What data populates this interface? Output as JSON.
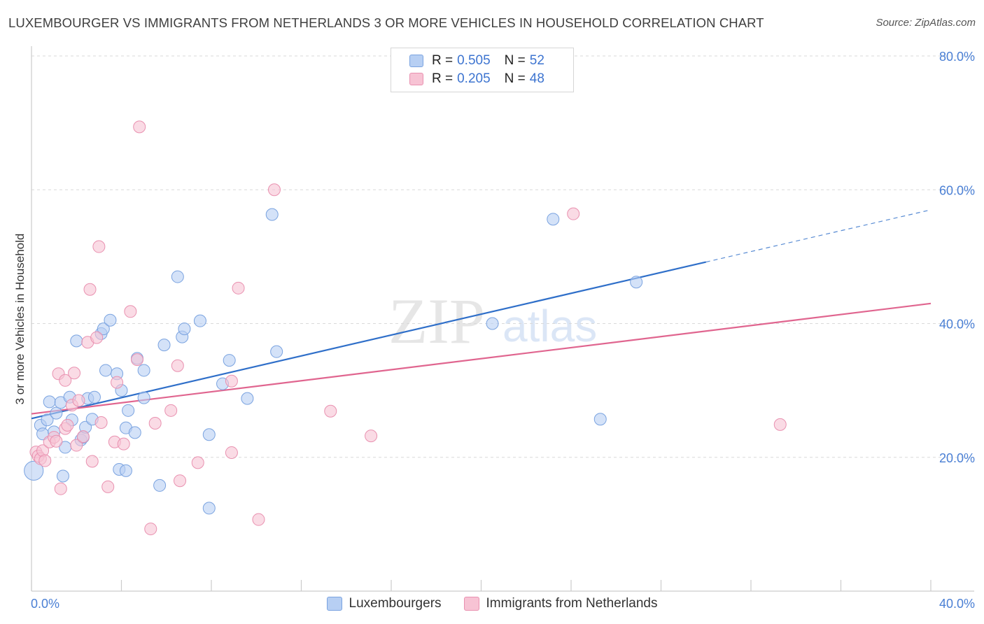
{
  "header": {
    "title": "LUXEMBOURGER VS IMMIGRANTS FROM NETHERLANDS 3 OR MORE VEHICLES IN HOUSEHOLD CORRELATION CHART",
    "source": "Source: ZipAtlas.com"
  },
  "watermark": {
    "zip": "ZIP",
    "atlas": "atlas"
  },
  "legend": {
    "rows": [
      {
        "r_label": "R =",
        "r_value": "0.505",
        "n_label": "N =",
        "n_value": "52"
      },
      {
        "r_label": "R =",
        "r_value": "0.205",
        "n_label": "N =",
        "n_value": "48"
      }
    ]
  },
  "bottom_legend": {
    "series1": "Luxembourgers",
    "series2": "Immigrants from Netherlands"
  },
  "colors": {
    "blue_fill": "#b7cff3",
    "blue_stroke": "#7aa3e0",
    "blue_line": "#2f6fc9",
    "pink_fill": "#f7c3d4",
    "pink_stroke": "#e991b0",
    "pink_line": "#e0658f",
    "grid": "#d9d9d9",
    "axis_text": "#4a7fd4"
  },
  "chart_data": {
    "type": "scatter",
    "title": "LUXEMBOURGER VS IMMIGRANTS FROM NETHERLANDS 3 OR MORE VEHICLES IN HOUSEHOLD CORRELATION CHART",
    "xlabel": "",
    "ylabel": "3 or more Vehicles in Household",
    "xlim": [
      0,
      40
    ],
    "ylim": [
      0,
      80
    ],
    "x_tick_labels": [
      "0.0%",
      "40.0%"
    ],
    "y_ticks": [
      20,
      40,
      60,
      80
    ],
    "y_tick_labels": [
      "20.0%",
      "40.0%",
      "60.0%",
      "80.0%"
    ],
    "grid": true,
    "series": [
      {
        "name": "Luxembourgers",
        "color": "#7aa3e0",
        "R": 0.505,
        "N": 52,
        "trend": {
          "x_start": 0,
          "y_start": 25.8,
          "x_solid_end": 30,
          "y_solid_end": 49.2,
          "x_end": 40,
          "y_end": 57
        },
        "points": [
          [
            0.1,
            18.0,
            1.6
          ],
          [
            0.4,
            24.8,
            1
          ],
          [
            0.5,
            23.5,
            1
          ],
          [
            0.7,
            25.6,
            1
          ],
          [
            0.8,
            28.3,
            1
          ],
          [
            1.0,
            23.8,
            1
          ],
          [
            1.1,
            26.6,
            1
          ],
          [
            1.3,
            28.2,
            1
          ],
          [
            1.4,
            17.2,
            1
          ],
          [
            1.5,
            21.5,
            1
          ],
          [
            1.7,
            29.0,
            1
          ],
          [
            1.8,
            25.6,
            1
          ],
          [
            2.0,
            37.4,
            1
          ],
          [
            2.2,
            22.6,
            1
          ],
          [
            2.3,
            23.0,
            1
          ],
          [
            2.4,
            24.5,
            1
          ],
          [
            2.5,
            28.8,
            1
          ],
          [
            2.7,
            25.7,
            1
          ],
          [
            2.8,
            29.0,
            1
          ],
          [
            3.1,
            38.5,
            1
          ],
          [
            3.2,
            39.2,
            1
          ],
          [
            3.3,
            33.0,
            1
          ],
          [
            3.5,
            40.5,
            1
          ],
          [
            3.8,
            32.5,
            1
          ],
          [
            3.9,
            18.2,
            1
          ],
          [
            4.0,
            30.0,
            1
          ],
          [
            4.2,
            18.0,
            1
          ],
          [
            4.2,
            24.4,
            1
          ],
          [
            4.3,
            27.0,
            1
          ],
          [
            4.6,
            23.7,
            1
          ],
          [
            4.7,
            34.8,
            1
          ],
          [
            5.0,
            33.0,
            1
          ],
          [
            5.0,
            28.9,
            1
          ],
          [
            5.7,
            15.8,
            1
          ],
          [
            5.9,
            36.8,
            1
          ],
          [
            6.5,
            47.0,
            1
          ],
          [
            6.7,
            38.0,
            1
          ],
          [
            6.8,
            39.2,
            1
          ],
          [
            7.5,
            40.4,
            1
          ],
          [
            7.9,
            23.4,
            1
          ],
          [
            7.9,
            12.4,
            1
          ],
          [
            8.5,
            31.0,
            1
          ],
          [
            8.8,
            34.5,
            1
          ],
          [
            9.6,
            28.8,
            1
          ],
          [
            10.7,
            56.3,
            1
          ],
          [
            10.9,
            35.8,
            1
          ],
          [
            20.5,
            40.0,
            1
          ],
          [
            23.2,
            55.6,
            1
          ],
          [
            25.3,
            25.7,
            1
          ],
          [
            26.9,
            46.2,
            1
          ]
        ]
      },
      {
        "name": "Immigrants from Netherlands",
        "color": "#e991b0",
        "R": 0.205,
        "N": 48,
        "trend": {
          "x_start": 0,
          "y_start": 26.5,
          "x_end": 40,
          "y_end": 43.0
        },
        "points": [
          [
            0.2,
            20.8,
            1
          ],
          [
            0.3,
            20.2,
            1
          ],
          [
            0.4,
            19.8,
            1
          ],
          [
            0.5,
            21.0,
            1
          ],
          [
            0.6,
            19.5,
            1
          ],
          [
            0.8,
            22.3,
            1
          ],
          [
            1.0,
            23.0,
            1
          ],
          [
            1.1,
            22.4,
            1
          ],
          [
            1.2,
            32.5,
            1
          ],
          [
            1.3,
            15.3,
            1
          ],
          [
            1.5,
            31.5,
            1
          ],
          [
            1.5,
            24.3,
            1
          ],
          [
            1.6,
            24.8,
            1
          ],
          [
            1.8,
            27.8,
            1
          ],
          [
            1.9,
            32.6,
            1
          ],
          [
            2.0,
            21.8,
            1
          ],
          [
            2.1,
            28.5,
            1
          ],
          [
            2.3,
            23.1,
            1
          ],
          [
            2.5,
            37.2,
            1
          ],
          [
            2.6,
            45.1,
            1
          ],
          [
            2.7,
            19.4,
            1
          ],
          [
            2.9,
            37.9,
            1
          ],
          [
            3.0,
            51.5,
            1
          ],
          [
            3.1,
            25.2,
            1
          ],
          [
            3.4,
            15.6,
            1
          ],
          [
            3.7,
            22.3,
            1
          ],
          [
            3.8,
            31.2,
            1
          ],
          [
            4.1,
            22.0,
            1
          ],
          [
            4.4,
            41.8,
            1
          ],
          [
            4.7,
            34.6,
            1
          ],
          [
            4.8,
            69.4,
            1
          ],
          [
            5.3,
            9.3,
            1
          ],
          [
            5.5,
            25.1,
            1
          ],
          [
            6.2,
            27.0,
            1
          ],
          [
            6.5,
            33.7,
            1
          ],
          [
            6.6,
            16.5,
            1
          ],
          [
            7.4,
            19.2,
            1
          ],
          [
            8.9,
            31.4,
            1
          ],
          [
            8.9,
            20.7,
            1
          ],
          [
            9.2,
            45.3,
            1
          ],
          [
            10.1,
            10.7,
            1
          ],
          [
            10.8,
            60.0,
            1
          ],
          [
            13.3,
            26.9,
            1
          ],
          [
            15.1,
            23.2,
            1
          ],
          [
            24.1,
            56.4,
            1
          ],
          [
            33.3,
            24.9,
            1
          ]
        ]
      }
    ]
  }
}
